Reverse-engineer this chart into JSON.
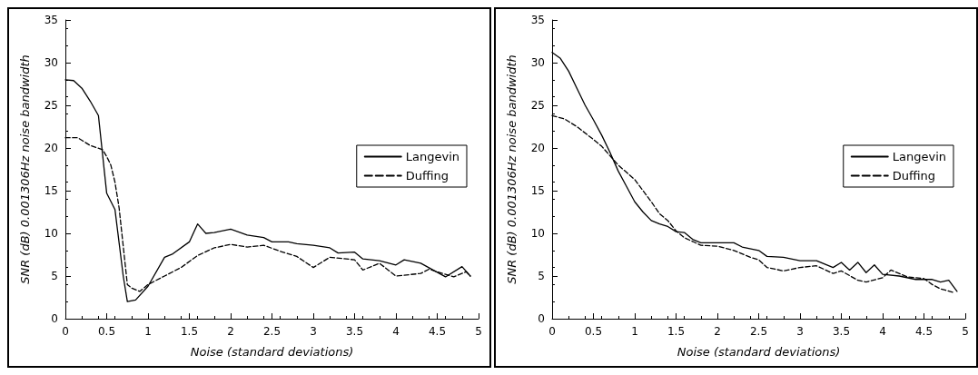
{
  "chart_data": [
    {
      "type": "line",
      "xlabel": "Noise (standard deviations)",
      "ylabel": "SNR (dB) 0.001306Hz noise bandwidth",
      "xlim": [
        0,
        5
      ],
      "xticks": [
        0,
        0.5,
        1,
        1.5,
        2,
        2.5,
        3,
        3.5,
        4,
        4.5,
        5
      ],
      "ylim": [
        0,
        35
      ],
      "yticks": [
        0,
        5,
        10,
        15,
        20,
        25,
        30,
        35
      ],
      "grid": false,
      "legend": "right",
      "marker": "none",
      "series": [
        {
          "name": "Langevin",
          "color": "#000000",
          "line_style": "solid",
          "x": [
            0,
            0.1,
            0.2,
            0.3,
            0.4,
            0.5,
            0.6,
            0.7,
            0.75,
            0.85,
            1,
            1.2,
            1.3,
            1.5,
            1.6,
            1.7,
            1.8,
            2,
            2.2,
            2.4,
            2.5,
            2.7,
            2.8,
            3,
            3.2,
            3.3,
            3.5,
            3.6,
            3.8,
            4,
            4.1,
            4.3,
            4.6,
            4.8,
            4.9
          ],
          "values": [
            28,
            27.9,
            27,
            25.5,
            23.8,
            14.7,
            12.8,
            5,
            2,
            2.2,
            3.8,
            7.2,
            7.6,
            9,
            11.1,
            10,
            10.1,
            10.5,
            9.8,
            9.5,
            9,
            9,
            8.8,
            8.6,
            8.3,
            7.7,
            7.8,
            7,
            6.8,
            6.3,
            6.9,
            6.5,
            4.9,
            6.1,
            5
          ]
        },
        {
          "name": "Duffing",
          "color": "#000000",
          "line_style": "dashed",
          "x": [
            0,
            0.15,
            0.3,
            0.45,
            0.5,
            0.55,
            0.6,
            0.65,
            0.75,
            0.8,
            0.9,
            1,
            1.2,
            1.4,
            1.6,
            1.8,
            2,
            2.2,
            2.4,
            2.6,
            2.8,
            3,
            3.2,
            3.5,
            3.6,
            3.8,
            4,
            4.3,
            4.4,
            4.7,
            4.85,
            4.9
          ],
          "values": [
            21.2,
            21.2,
            20.3,
            19.8,
            19,
            18,
            16,
            13,
            4,
            3.6,
            3.2,
            4,
            5,
            6,
            7.4,
            8.3,
            8.7,
            8.4,
            8.6,
            7.9,
            7.3,
            6,
            7.2,
            6.9,
            5.7,
            6.5,
            5,
            5.3,
            5.8,
            4.9,
            5.5,
            5
          ]
        }
      ]
    },
    {
      "type": "line",
      "xlabel": "Noise (standard deviations)",
      "ylabel": "SNR (dB) 0.001306Hz noise bandwidth",
      "xlim": [
        0,
        5
      ],
      "xticks": [
        0,
        0.5,
        1,
        1.5,
        2,
        2.5,
        3,
        3.5,
        4,
        4.5,
        5
      ],
      "ylim": [
        0,
        35
      ],
      "yticks": [
        0,
        5,
        10,
        15,
        20,
        25,
        30,
        35
      ],
      "grid": false,
      "legend": "right",
      "marker": "none",
      "series": [
        {
          "name": "Langevin",
          "color": "#000000",
          "line_style": "solid",
          "x": [
            0,
            0.1,
            0.2,
            0.3,
            0.4,
            0.5,
            0.6,
            0.7,
            0.8,
            0.9,
            1,
            1.1,
            1.2,
            1.3,
            1.4,
            1.5,
            1.6,
            1.7,
            1.8,
            2,
            2.2,
            2.3,
            2.5,
            2.6,
            2.8,
            3,
            3.2,
            3.4,
            3.5,
            3.6,
            3.7,
            3.8,
            3.9,
            4,
            4.2,
            4.4,
            4.6,
            4.7,
            4.8,
            4.9
          ],
          "values": [
            31.2,
            30.5,
            29,
            27,
            25,
            23.3,
            21.5,
            19.5,
            17.3,
            15.5,
            13.7,
            12.5,
            11.5,
            11.1,
            10.8,
            10.2,
            10.1,
            9.3,
            8.9,
            8.9,
            8.9,
            8.4,
            8,
            7.3,
            7.2,
            6.8,
            6.8,
            6,
            6.6,
            5.7,
            6.6,
            5.4,
            6.3,
            5.2,
            5,
            4.6,
            4.6,
            4.3,
            4.5,
            3.2
          ]
        },
        {
          "name": "Duffing",
          "color": "#000000",
          "line_style": "dashed",
          "x": [
            0,
            0.15,
            0.3,
            0.5,
            0.6,
            0.8,
            1,
            1.2,
            1.3,
            1.4,
            1.5,
            1.6,
            1.8,
            2,
            2.2,
            2.4,
            2.5,
            2.6,
            2.8,
            3,
            3.2,
            3.4,
            3.5,
            3.7,
            3.8,
            4,
            4.1,
            4.3,
            4.5,
            4.6,
            4.7,
            4.85
          ],
          "values": [
            23.8,
            23.4,
            22.5,
            21,
            20.2,
            18,
            16.3,
            13.7,
            12.3,
            11.5,
            10.3,
            9.5,
            8.6,
            8.5,
            8,
            7.2,
            6.9,
            6,
            5.6,
            6,
            6.2,
            5.3,
            5.6,
            4.5,
            4.3,
            4.8,
            5.7,
            4.9,
            4.7,
            4,
            3.5,
            3.1
          ]
        }
      ]
    }
  ]
}
